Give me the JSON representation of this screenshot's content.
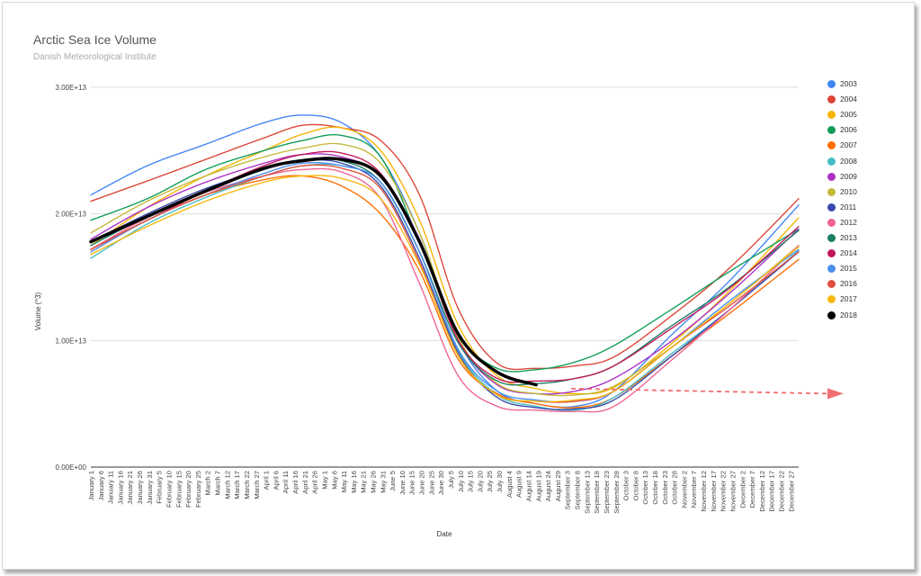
{
  "header": {
    "title": "Arctic Sea Ice Volume",
    "subtitle": "Danish Meteorological Institute"
  },
  "chart_data": {
    "type": "line",
    "title": "Arctic Sea Ice Volume",
    "subtitle": "Danish Meteorological Institute",
    "xlabel": "Date",
    "ylabel": "Volume (^3)",
    "ylim": [
      0,
      30000000000000
    ],
    "yticks": [
      "0.00E+00",
      "1.00E+13",
      "2.00E+13",
      "3.00E+13"
    ],
    "xticks": [
      "January 1",
      "January 6",
      "January 11",
      "January 16",
      "January 21",
      "January 26",
      "January 31",
      "February 5",
      "February 10",
      "February 15",
      "February 20",
      "February 25",
      "March 2",
      "March 7",
      "March 12",
      "March 17",
      "March 22",
      "March 27",
      "April 1",
      "April 6",
      "April 11",
      "April 16",
      "April 21",
      "April 26",
      "May 1",
      "May 6",
      "May 11",
      "May 16",
      "May 21",
      "May 26",
      "May 31",
      "June 5",
      "June 10",
      "June 15",
      "June 20",
      "June 25",
      "June 30",
      "July 5",
      "July 10",
      "July 15",
      "July 20",
      "July 25",
      "July 30",
      "August 4",
      "August 9",
      "August 14",
      "August 19",
      "August 24",
      "August 29",
      "September 3",
      "September 8",
      "September 13",
      "September 18",
      "September 23",
      "September 28",
      "October 3",
      "October 8",
      "October 13",
      "October 18",
      "October 23",
      "October 28",
      "November 2",
      "November 7",
      "November 12",
      "November 17",
      "November 22",
      "November 27",
      "December 2",
      "December 7",
      "December 12",
      "December 17",
      "December 22",
      "December 27"
    ],
    "grid": true,
    "legend_position": "right",
    "x": [
      1,
      30,
      60,
      90,
      110,
      130,
      150,
      170,
      190,
      210,
      230,
      250,
      270,
      300,
      330,
      365
    ],
    "series": [
      {
        "name": "2003",
        "color": "#4285f4",
        "values": [
          21500000000000.0,
          23800000000000.0,
          25500000000000.0,
          27200000000000.0,
          27800000000000.0,
          27200000000000.0,
          24500000000000.0,
          18500000000000.0,
          10000000000000.0,
          6000000000000.0,
          5000000000000.0,
          4800000000000.0,
          6000000000000.0,
          10500000000000.0,
          14800000000000.0,
          20700000000000.0
        ]
      },
      {
        "name": "2004",
        "color": "#db4437",
        "values": [
          21000000000000.0,
          22600000000000.0,
          24300000000000.0,
          26000000000000.0,
          27000000000000.0,
          26800000000000.0,
          25800000000000.0,
          21500000000000.0,
          12500000000000.0,
          8200000000000.0,
          7800000000000.0,
          8000000000000.0,
          8700000000000.0,
          12000000000000.0,
          15800000000000.0,
          21200000000000.0
        ]
      },
      {
        "name": "2005",
        "color": "#f4b400",
        "values": [
          17500000000000.0,
          20500000000000.0,
          23000000000000.0,
          25000000000000.0,
          26300000000000.0,
          26800000000000.0,
          25000000000000.0,
          19500000000000.0,
          11200000000000.0,
          7200000000000.0,
          6200000000000.0,
          5800000000000.0,
          6300000000000.0,
          9800000000000.0,
          14000000000000.0,
          19700000000000.0
        ]
      },
      {
        "name": "2006",
        "color": "#0f9d58",
        "values": [
          19500000000000.0,
          21200000000000.0,
          23500000000000.0,
          25000000000000.0,
          25800000000000.0,
          26200000000000.0,
          24500000000000.0,
          17800000000000.0,
          10500000000000.0,
          7800000000000.0,
          7700000000000.0,
          8300000000000.0,
          9600000000000.0,
          12500000000000.0,
          15500000000000.0,
          18800000000000.0
        ]
      },
      {
        "name": "2007",
        "color": "#ff6d00",
        "values": [
          17000000000000.0,
          19500000000000.0,
          21500000000000.0,
          22700000000000.0,
          23000000000000.0,
          22200000000000.0,
          20000000000000.0,
          15500000000000.0,
          8500000000000.0,
          5800000000000.0,
          5000000000000.0,
          4700000000000.0,
          5500000000000.0,
          8800000000000.0,
          12200000000000.0,
          16400000000000.0
        ]
      },
      {
        "name": "2008",
        "color": "#46bdc6",
        "values": [
          16500000000000.0,
          19200000000000.0,
          21300000000000.0,
          23000000000000.0,
          23800000000000.0,
          23800000000000.0,
          22500000000000.0,
          17000000000000.0,
          9200000000000.0,
          5700000000000.0,
          4800000000000.0,
          4500000000000.0,
          5500000000000.0,
          9000000000000.0,
          12500000000000.0,
          17100000000000.0
        ]
      },
      {
        "name": "2009",
        "color": "#ab30c4",
        "values": [
          18000000000000.0,
          20500000000000.0,
          22500000000000.0,
          24000000000000.0,
          24700000000000.0,
          24500000000000.0,
          23000000000000.0,
          18000000000000.0,
          10000000000000.0,
          6500000000000.0,
          5800000000000.0,
          6000000000000.0,
          7000000000000.0,
          10000000000000.0,
          13800000000000.0,
          18800000000000.0
        ]
      },
      {
        "name": "2010",
        "color": "#c5b83a",
        "values": [
          18500000000000.0,
          21000000000000.0,
          23000000000000.0,
          24500000000000.0,
          25200000000000.0,
          25500000000000.0,
          24000000000000.0,
          18500000000000.0,
          10200000000000.0,
          6600000000000.0,
          5800000000000.0,
          5700000000000.0,
          6400000000000.0,
          9500000000000.0,
          13000000000000.0,
          17500000000000.0
        ]
      },
      {
        "name": "2011",
        "color": "#3949ab",
        "values": [
          17800000000000.0,
          20000000000000.0,
          22000000000000.0,
          23500000000000.0,
          24200000000000.0,
          24000000000000.0,
          22200000000000.0,
          16500000000000.0,
          9000000000000.0,
          5500000000000.0,
          4700000000000.0,
          4600000000000.0,
          5300000000000.0,
          8800000000000.0,
          12500000000000.0,
          17000000000000.0
        ]
      },
      {
        "name": "2012",
        "color": "#f06292",
        "values": [
          17200000000000.0,
          19700000000000.0,
          21700000000000.0,
          23000000000000.0,
          23500000000000.0,
          23300000000000.0,
          21200000000000.0,
          14500000000000.0,
          7200000000000.0,
          4800000000000.0,
          4500000000000.0,
          4400000000000.0,
          4800000000000.0,
          8500000000000.0,
          12500000000000.0,
          17500000000000.0
        ]
      },
      {
        "name": "2013",
        "color": "#1a7f64",
        "values": [
          17500000000000.0,
          19800000000000.0,
          21800000000000.0,
          23500000000000.0,
          24300000000000.0,
          24200000000000.0,
          22500000000000.0,
          17000000000000.0,
          9800000000000.0,
          6800000000000.0,
          6600000000000.0,
          7000000000000.0,
          8000000000000.0,
          11200000000000.0,
          14300000000000.0,
          18700000000000.0
        ]
      },
      {
        "name": "2014",
        "color": "#c2185b",
        "values": [
          17200000000000.0,
          19500000000000.0,
          21800000000000.0,
          23800000000000.0,
          24700000000000.0,
          24800000000000.0,
          23200000000000.0,
          17800000000000.0,
          10000000000000.0,
          7000000000000.0,
          6800000000000.0,
          7000000000000.0,
          8000000000000.0,
          11000000000000.0,
          14200000000000.0,
          19000000000000.0
        ]
      },
      {
        "name": "2015",
        "color": "#4a8ff0",
        "values": [
          17000000000000.0,
          19500000000000.0,
          21500000000000.0,
          23200000000000.0,
          24000000000000.0,
          23800000000000.0,
          22500000000000.0,
          17000000000000.0,
          9300000000000.0,
          6000000000000.0,
          5300000000000.0,
          5200000000000.0,
          6000000000000.0,
          9500000000000.0,
          13200000000000.0,
          17200000000000.0
        ]
      },
      {
        "name": "2016",
        "color": "#e0513e",
        "values": [
          17200000000000.0,
          19500000000000.0,
          21500000000000.0,
          23000000000000.0,
          23800000000000.0,
          23600000000000.0,
          22000000000000.0,
          16200000000000.0,
          8800000000000.0,
          5700000000000.0,
          5200000000000.0,
          5200000000000.0,
          6000000000000.0,
          9500000000000.0,
          12800000000000.0,
          17000000000000.0
        ]
      },
      {
        "name": "2017",
        "color": "#f6b70d",
        "values": [
          16800000000000.0,
          19000000000000.0,
          21000000000000.0,
          22500000000000.0,
          23000000000000.0,
          22800000000000.0,
          21200000000000.0,
          16000000000000.0,
          8800000000000.0,
          5700000000000.0,
          5200000000000.0,
          5300000000000.0,
          6000000000000.0,
          9500000000000.0,
          13000000000000.0,
          17400000000000.0
        ]
      },
      {
        "name": "2018",
        "color": "#000000",
        "values": [
          17800000000000.0,
          19800000000000.0,
          21800000000000.0,
          23600000000000.0,
          24200000000000.0,
          24300000000000.0,
          23000000000000.0,
          17800000000000.0,
          10500000000000.0,
          7500000000000.0,
          6500000000000.0,
          null,
          null,
          null,
          null,
          null
        ]
      }
    ],
    "annotations": [
      {
        "type": "arrow",
        "style": "dashed",
        "color": "#f07070",
        "from": [
          248,
          6200000000000.0
        ],
        "to": [
          365,
          5800000000000.0
        ]
      }
    ]
  }
}
